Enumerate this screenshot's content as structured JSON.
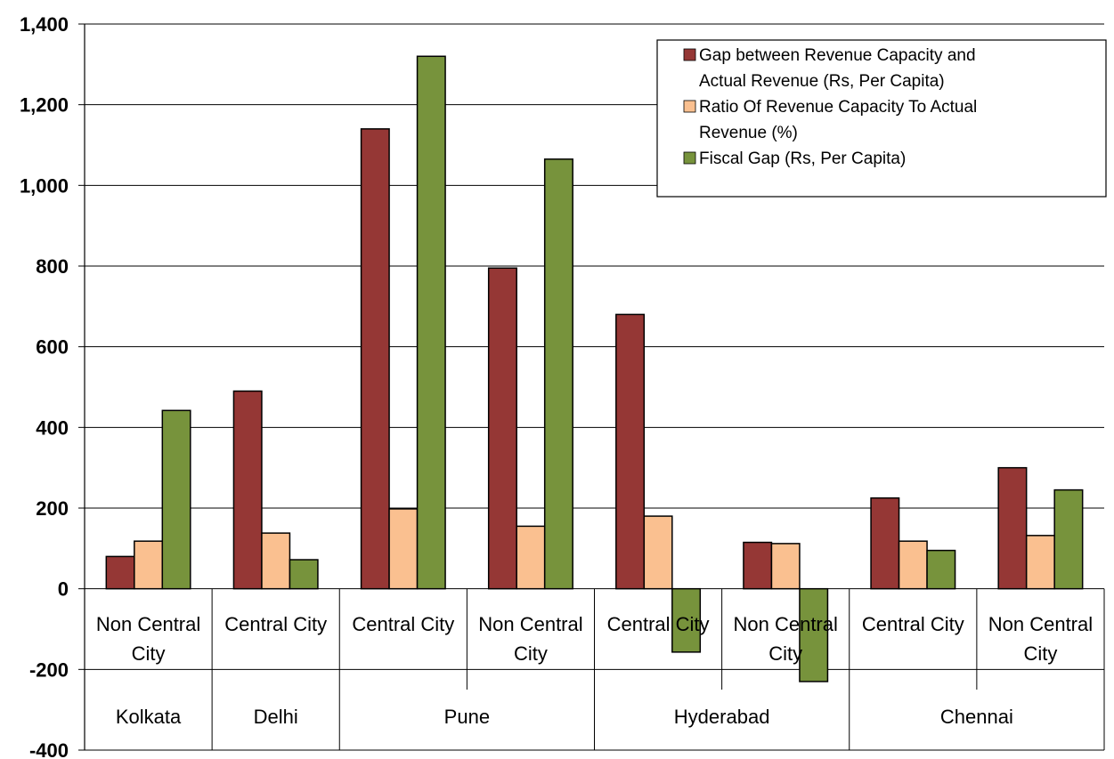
{
  "chart_data": {
    "type": "bar",
    "title": "",
    "xlabel": "",
    "ylabel": "",
    "ylim": [
      -400,
      1400
    ],
    "yticks": [
      "-400",
      "-200",
      "0",
      "200",
      "400",
      "600",
      "800",
      "1,000",
      "1,200",
      "1,400"
    ],
    "grid": true,
    "legend_position": "top-right",
    "categories": [
      [
        "Non Central",
        "City"
      ],
      [
        "Central City"
      ],
      [
        "Central City"
      ],
      [
        "Non Central",
        "City"
      ],
      [
        "Central City"
      ],
      [
        "Non Central",
        "City"
      ],
      [
        "Central City"
      ],
      [
        "Non Central",
        "City"
      ]
    ],
    "groups": [
      {
        "label": "Kolkata",
        "span": 1
      },
      {
        "label": "Delhi",
        "span": 1
      },
      {
        "label": "Pune",
        "span": 2
      },
      {
        "label": "Hyderabad",
        "span": 2
      },
      {
        "label": "Chennai",
        "span": 2
      }
    ],
    "series": [
      {
        "name": [
          "Gap between Revenue Capacity and",
          "Actual Revenue (Rs, Per Capita)"
        ],
        "color": "#953735",
        "values": [
          80,
          490,
          1140,
          795,
          680,
          115,
          225,
          300
        ]
      },
      {
        "name": [
          "Ratio Of Revenue Capacity To Actual",
          "Revenue (%)"
        ],
        "color": "#FAC090",
        "values": [
          118,
          138,
          198,
          155,
          180,
          112,
          118,
          132
        ]
      },
      {
        "name": [
          "Fiscal Gap (Rs, Per Capita)"
        ],
        "color": "#77933C",
        "values": [
          442,
          72,
          1320,
          1065,
          -157,
          -230,
          95,
          245
        ]
      }
    ]
  }
}
